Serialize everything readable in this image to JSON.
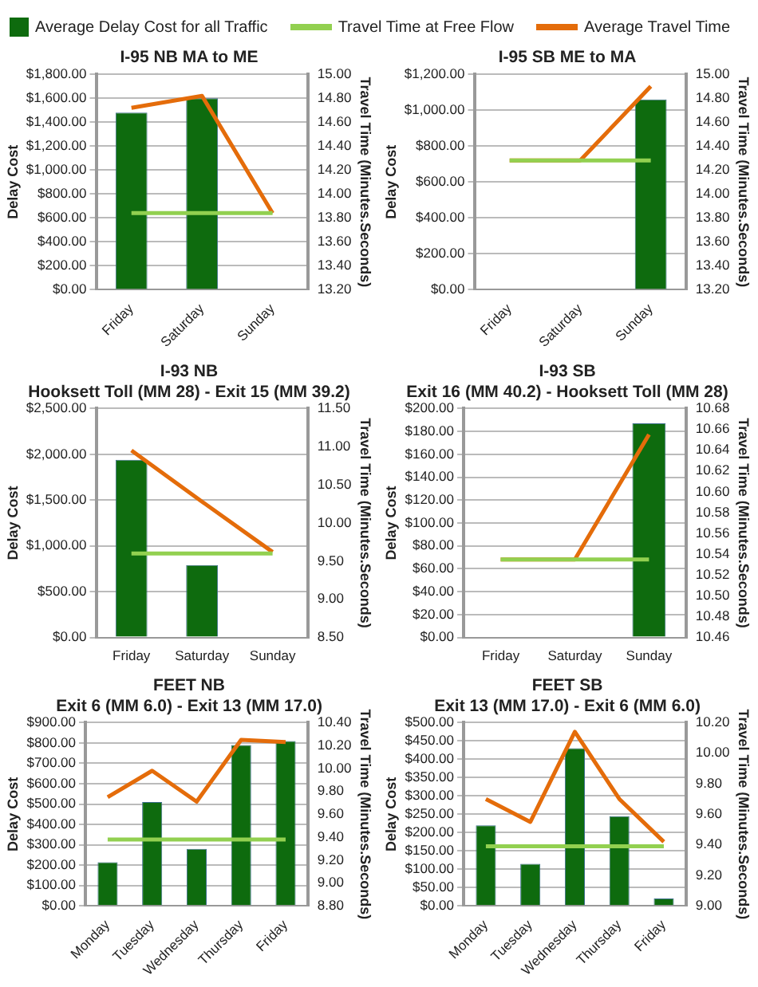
{
  "chart_data": [
    {
      "type": "bar",
      "title": "I-95 NB MA to ME",
      "ylabel": "Delay Cost",
      "y2label": "Travel Time (Minutes.Seconds)",
      "categories": [
        "Friday",
        "Saturday",
        "Sunday"
      ],
      "legend": "top",
      "grid": "y",
      "marker": "none",
      "series": [
        {
          "name": "Average Delay Cost for all Traffic",
          "color": "#0e6b0e",
          "values": [
            1480,
            1600,
            null
          ]
        },
        {
          "name": "Travel Time at Free Flow",
          "type": "line",
          "axis": "y2",
          "color": "#92d050",
          "values": [
            13.84,
            13.84,
            13.84
          ]
        },
        {
          "name": "Average Travel Time",
          "type": "line",
          "axis": "y2",
          "color": "#e46c0a",
          "values": [
            14.72,
            14.82,
            13.84
          ]
        }
      ],
      "ylim": [
        0,
        1800
      ],
      "yticks": [
        {
          "value": 0,
          "label": "$0.00"
        },
        {
          "value": 200,
          "label": "$200.00"
        },
        {
          "value": 400,
          "label": "$400.00"
        },
        {
          "value": 600,
          "label": "$600.00"
        },
        {
          "value": 800,
          "label": "$800.00"
        },
        {
          "value": 1000,
          "label": "$1,000.00"
        },
        {
          "value": 1200,
          "label": "$1,200.00"
        },
        {
          "value": 1400,
          "label": "$1,400.00"
        },
        {
          "value": 1600,
          "label": "$1,600.00"
        },
        {
          "value": 1800,
          "label": "$1,800.00"
        }
      ],
      "y2lim": [
        13.2,
        15
      ],
      "y2ticks": [
        {
          "value": 13.2,
          "label": "13.20"
        },
        {
          "value": 13.4,
          "label": "13.40"
        },
        {
          "value": 13.6,
          "label": "13.60"
        },
        {
          "value": 13.8,
          "label": "13.80"
        },
        {
          "value": 14,
          "label": "14.00"
        },
        {
          "value": 14.2,
          "label": "14.20"
        },
        {
          "value": 14.4,
          "label": "14.40"
        },
        {
          "value": 14.6,
          "label": "14.60"
        },
        {
          "value": 14.8,
          "label": "14.80"
        },
        {
          "value": 15,
          "label": "15.00"
        }
      ]
    },
    {
      "type": "bar",
      "title": "I-95 SB ME to MA",
      "ylabel": "Delay Cost",
      "y2label": "Travel Time (Minutes.Seconds)",
      "categories": [
        "Friday",
        "Saturday",
        "Sunday"
      ],
      "grid": "y",
      "marker": "none",
      "series": [
        {
          "color": "#0e6b0e",
          "values": [
            null,
            null,
            1060
          ]
        },
        {
          "type": "line",
          "axis": "y2",
          "color": "#92d050",
          "values": [
            14.28,
            14.28,
            14.28
          ]
        },
        {
          "type": "line",
          "axis": "y2",
          "color": "#e46c0a",
          "values": [
            14.28,
            14.28,
            14.9
          ]
        }
      ],
      "ylim": [
        0,
        1200
      ],
      "yticks": [
        {
          "value": 0,
          "label": "$0.00"
        },
        {
          "value": 200,
          "label": "$200.00"
        },
        {
          "value": 400,
          "label": "$400.00"
        },
        {
          "value": 600,
          "label": "$600.00"
        },
        {
          "value": 800,
          "label": "$800.00"
        },
        {
          "value": 1000,
          "label": "$1,000.00"
        },
        {
          "value": 1200,
          "label": "$1,200.00"
        }
      ],
      "y2lim": [
        13.2,
        15
      ],
      "y2ticks": [
        {
          "value": 13.2,
          "label": "13.20"
        },
        {
          "value": 13.4,
          "label": "13.40"
        },
        {
          "value": 13.6,
          "label": "13.60"
        },
        {
          "value": 13.8,
          "label": "13.80"
        },
        {
          "value": 14,
          "label": "14.00"
        },
        {
          "value": 14.2,
          "label": "14.20"
        },
        {
          "value": 14.4,
          "label": "14.40"
        },
        {
          "value": 14.6,
          "label": "14.60"
        },
        {
          "value": 14.8,
          "label": "14.80"
        },
        {
          "value": 15,
          "label": "15.00"
        }
      ]
    },
    {
      "type": "bar",
      "title": "I-93 NB",
      "subtitle": "Hooksett Toll (MM 28) - Exit 15 (MM 39.2)",
      "ylabel": "Delay Cost",
      "y2label": "Travel Time (Minutes.Seconds)",
      "categories": [
        "Friday",
        "Saturday",
        "Sunday"
      ],
      "grid": "y",
      "marker": "none",
      "series": [
        {
          "color": "#0e6b0e",
          "values": [
            1940,
            790,
            null
          ]
        },
        {
          "type": "line",
          "axis": "y2",
          "color": "#92d050",
          "values": [
            9.6,
            9.6,
            9.6
          ]
        },
        {
          "type": "line",
          "axis": "y2",
          "color": "#e46c0a",
          "values": [
            10.95,
            10.28,
            9.62
          ]
        }
      ],
      "ylim": [
        0,
        2500
      ],
      "yticks": [
        {
          "value": 0,
          "label": "$0.00"
        },
        {
          "value": 500,
          "label": "$500.00"
        },
        {
          "value": 1000,
          "label": "$1,000.00"
        },
        {
          "value": 1500,
          "label": "$1,500.00"
        },
        {
          "value": 2000,
          "label": "$2,000.00"
        },
        {
          "value": 2500,
          "label": "$2,500.00"
        }
      ],
      "y2lim": [
        8.5,
        11.5
      ],
      "y2ticks": [
        {
          "value": 8.5,
          "label": "8.50"
        },
        {
          "value": 9,
          "label": "9.00"
        },
        {
          "value": 9.5,
          "label": "9.50"
        },
        {
          "value": 10,
          "label": "10.00"
        },
        {
          "value": 10.5,
          "label": "10.50"
        },
        {
          "value": 11,
          "label": "11.00"
        },
        {
          "value": 11.5,
          "label": "11.50"
        }
      ]
    },
    {
      "type": "bar",
      "title": "I-93 SB",
      "subtitle": "Exit 16 (MM 40.2) - Hooksett Toll (MM 28)",
      "ylabel": "Delay Cost",
      "y2label": "Travel Time (Minutes.Seconds)",
      "categories": [
        "Friday",
        "Saturday",
        "Sunday"
      ],
      "grid": "y",
      "marker": "none",
      "series": [
        {
          "color": "#0e6b0e",
          "values": [
            null,
            null,
            187
          ]
        },
        {
          "type": "line",
          "axis": "y2",
          "color": "#92d050",
          "values": [
            10.535,
            10.535,
            10.535
          ]
        },
        {
          "type": "line",
          "axis": "y2",
          "color": "#e46c0a",
          "values": [
            10.535,
            10.535,
            10.655
          ]
        }
      ],
      "ylim": [
        0,
        200
      ],
      "yticks": [
        {
          "value": 0,
          "label": "$0.00"
        },
        {
          "value": 20,
          "label": "$20.00"
        },
        {
          "value": 40,
          "label": "$40.00"
        },
        {
          "value": 60,
          "label": "$60.00"
        },
        {
          "value": 80,
          "label": "$80.00"
        },
        {
          "value": 100,
          "label": "$100.00"
        },
        {
          "value": 120,
          "label": "$120.00"
        },
        {
          "value": 140,
          "label": "$140.00"
        },
        {
          "value": 160,
          "label": "$160.00"
        },
        {
          "value": 180,
          "label": "$180.00"
        },
        {
          "value": 200,
          "label": "$200.00"
        }
      ],
      "y2lim": [
        10.46,
        10.68
      ],
      "y2ticks": [
        {
          "value": 10.46,
          "label": "10.46"
        },
        {
          "value": 10.48,
          "label": "10.48"
        },
        {
          "value": 10.5,
          "label": "10.50"
        },
        {
          "value": 10.52,
          "label": "10.52"
        },
        {
          "value": 10.54,
          "label": "10.54"
        },
        {
          "value": 10.56,
          "label": "10.56"
        },
        {
          "value": 10.58,
          "label": "10.58"
        },
        {
          "value": 10.6,
          "label": "10.60"
        },
        {
          "value": 10.62,
          "label": "10.62"
        },
        {
          "value": 10.64,
          "label": "10.64"
        },
        {
          "value": 10.66,
          "label": "10.66"
        },
        {
          "value": 10.68,
          "label": "10.68"
        }
      ]
    },
    {
      "type": "bar",
      "title": "FEET NB",
      "subtitle": "Exit 6 (MM 6.0) - Exit 13 (MM 17.0)",
      "ylabel": "Delay Cost",
      "y2label": "Travel Time (Minutes.Seconds)",
      "categories": [
        "Monday",
        "Tuesday",
        "Wednesday",
        "Thursday",
        "Friday"
      ],
      "grid": "y",
      "marker": "none",
      "series": [
        {
          "color": "#0e6b0e",
          "values": [
            215,
            510,
            280,
            790,
            810
          ]
        },
        {
          "type": "line",
          "axis": "y2",
          "color": "#92d050",
          "values": [
            9.38,
            9.38,
            9.38,
            9.38,
            9.38
          ]
        },
        {
          "type": "line",
          "axis": "y2",
          "color": "#e46c0a",
          "values": [
            9.75,
            9.98,
            9.71,
            10.25,
            10.23
          ]
        }
      ],
      "ylim": [
        0,
        900
      ],
      "yticks": [
        {
          "value": 0,
          "label": "$0.00"
        },
        {
          "value": 100,
          "label": "$100.00"
        },
        {
          "value": 200,
          "label": "$200.00"
        },
        {
          "value": 300,
          "label": "$300.00"
        },
        {
          "value": 400,
          "label": "$400.00"
        },
        {
          "value": 500,
          "label": "$500.00"
        },
        {
          "value": 600,
          "label": "$600.00"
        },
        {
          "value": 700,
          "label": "$700.00"
        },
        {
          "value": 800,
          "label": "$800.00"
        },
        {
          "value": 900,
          "label": "$900.00"
        }
      ],
      "y2lim": [
        8.8,
        10.4
      ],
      "y2ticks": [
        {
          "value": 8.8,
          "label": "8.80"
        },
        {
          "value": 9,
          "label": "9.00"
        },
        {
          "value": 9.2,
          "label": "9.20"
        },
        {
          "value": 9.4,
          "label": "9.40"
        },
        {
          "value": 9.6,
          "label": "9.60"
        },
        {
          "value": 9.8,
          "label": "9.80"
        },
        {
          "value": 10,
          "label": "10.00"
        },
        {
          "value": 10.2,
          "label": "10.20"
        },
        {
          "value": 10.4,
          "label": "10.40"
        }
      ]
    },
    {
      "type": "bar",
      "title": "FEET SB",
      "subtitle": "Exit 13 (MM 17.0) - Exit 6 (MM 6.0)",
      "ylabel": "Delay Cost",
      "y2label": "Travel Time (Minutes.Seconds)",
      "categories": [
        "Monday",
        "Tuesday",
        "Wednesday",
        "Thursday",
        "Friday"
      ],
      "grid": "y",
      "marker": "none",
      "series": [
        {
          "color": "#0e6b0e",
          "values": [
            220,
            115,
            430,
            245,
            20
          ]
        },
        {
          "type": "line",
          "axis": "y2",
          "color": "#92d050",
          "values": [
            9.39,
            9.39,
            9.39,
            9.39,
            9.39
          ]
        },
        {
          "type": "line",
          "axis": "y2",
          "color": "#e46c0a",
          "values": [
            9.7,
            9.55,
            10.14,
            9.7,
            9.42
          ]
        }
      ],
      "ylim": [
        0,
        500
      ],
      "yticks": [
        {
          "value": 0,
          "label": "$0.00"
        },
        {
          "value": 50,
          "label": "$50.00"
        },
        {
          "value": 100,
          "label": "$100.00"
        },
        {
          "value": 150,
          "label": "$150.00"
        },
        {
          "value": 200,
          "label": "$200.00"
        },
        {
          "value": 250,
          "label": "$250.00"
        },
        {
          "value": 300,
          "label": "$300.00"
        },
        {
          "value": 350,
          "label": "$350.00"
        },
        {
          "value": 400,
          "label": "$400.00"
        },
        {
          "value": 450,
          "label": "$450.00"
        },
        {
          "value": 500,
          "label": "$500.00"
        }
      ],
      "y2lim": [
        9,
        10.2
      ],
      "y2ticks": [
        {
          "value": 9,
          "label": "9.00"
        },
        {
          "value": 9.2,
          "label": "9.20"
        },
        {
          "value": 9.4,
          "label": "9.40"
        },
        {
          "value": 9.6,
          "label": "9.60"
        },
        {
          "value": 9.8,
          "label": "9.80"
        },
        {
          "value": 10,
          "label": "10.00"
        },
        {
          "value": 10.2,
          "label": "10.20"
        }
      ]
    }
  ]
}
